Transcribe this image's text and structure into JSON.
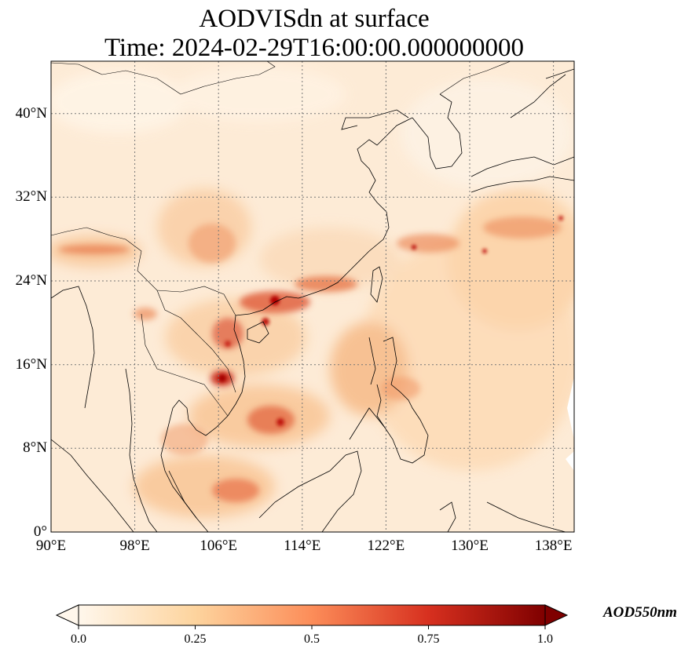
{
  "title_line1": "AODVISdn at surface",
  "title_line2": "Time: 2024-02-29T16:00:00.000000000",
  "map": {
    "lon_range": [
      90,
      140
    ],
    "lat_range": [
      0,
      45
    ],
    "lon_ticks": [
      "90°E",
      "98°E",
      "106°E",
      "114°E",
      "122°E",
      "130°E",
      "138°E"
    ],
    "lat_ticks": [
      "0°",
      "8°N",
      "16°N",
      "24°N",
      "32°N",
      "40°N"
    ],
    "gridlines": "dotted gray",
    "colormap": "OrRd",
    "land_color": "#000000"
  },
  "colorbar": {
    "label": "AOD550nm",
    "ticks": [
      "0.0",
      "0.25",
      "0.5",
      "0.75",
      "1.0"
    ],
    "range": [
      0.0,
      1.0
    ],
    "extend": "both",
    "colors": [
      "#fff7ec",
      "#fdd49e",
      "#fc8d59",
      "#d7301f",
      "#7f0000"
    ]
  }
}
